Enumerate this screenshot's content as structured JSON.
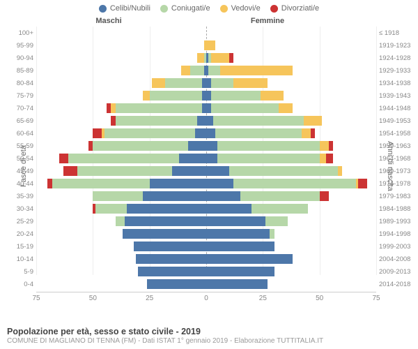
{
  "chart": {
    "type": "population-pyramid",
    "xmax": 75,
    "xtick_step": 25,
    "title": "Popolazione per età, sesso e stato civile - 2019",
    "subtitle": "COMUNE DI MAGLIANO DI TENNA (FM) - Dati ISTAT 1° gennaio 2019 - Elaborazione TUTTITALIA.IT",
    "y_left_label": "Fasce di età",
    "y_right_label": "Anni di nascita",
    "header_male": "Maschi",
    "header_female": "Femmine",
    "categories": [
      {
        "key": "celibi",
        "label": "Celibi/Nubili",
        "color": "#4d77a9"
      },
      {
        "key": "coniugati",
        "label": "Coniugati/e",
        "color": "#b6d7a8"
      },
      {
        "key": "vedovi",
        "label": "Vedovi/e",
        "color": "#f6c55b"
      },
      {
        "key": "divorziati",
        "label": "Divorziati/e",
        "color": "#cc3333"
      }
    ],
    "grid_color": "#eeeeee",
    "center_line_color": "#aaaaaa",
    "background_color": "#ffffff",
    "text_color": "#666666",
    "rows": [
      {
        "age": "100+",
        "birth": "≤ 1918",
        "m": {
          "cel": 0,
          "con": 0,
          "ved": 0,
          "div": 0
        },
        "f": {
          "cel": 0,
          "con": 0,
          "ved": 0,
          "div": 0
        }
      },
      {
        "age": "95-99",
        "birth": "1919-1923",
        "m": {
          "cel": 0,
          "con": 0,
          "ved": 1,
          "div": 0
        },
        "f": {
          "cel": 0,
          "con": 0,
          "ved": 4,
          "div": 0
        }
      },
      {
        "age": "90-94",
        "birth": "1924-1928",
        "m": {
          "cel": 0,
          "con": 1,
          "ved": 3,
          "div": 0
        },
        "f": {
          "cel": 1,
          "con": 1,
          "ved": 8,
          "div": 2
        }
      },
      {
        "age": "85-89",
        "birth": "1929-1933",
        "m": {
          "cel": 1,
          "con": 6,
          "ved": 4,
          "div": 0
        },
        "f": {
          "cel": 1,
          "con": 5,
          "ved": 32,
          "div": 0
        }
      },
      {
        "age": "80-84",
        "birth": "1934-1938",
        "m": {
          "cel": 2,
          "con": 16,
          "ved": 6,
          "div": 0
        },
        "f": {
          "cel": 2,
          "con": 10,
          "ved": 15,
          "div": 0
        }
      },
      {
        "age": "75-79",
        "birth": "1939-1943",
        "m": {
          "cel": 2,
          "con": 23,
          "ved": 3,
          "div": 0
        },
        "f": {
          "cel": 2,
          "con": 22,
          "ved": 10,
          "div": 0
        }
      },
      {
        "age": "70-74",
        "birth": "1944-1948",
        "m": {
          "cel": 2,
          "con": 38,
          "ved": 2,
          "div": 2
        },
        "f": {
          "cel": 2,
          "con": 30,
          "ved": 6,
          "div": 0
        }
      },
      {
        "age": "65-69",
        "birth": "1949-1953",
        "m": {
          "cel": 4,
          "con": 36,
          "ved": 0,
          "div": 2
        },
        "f": {
          "cel": 3,
          "con": 40,
          "ved": 8,
          "div": 0
        }
      },
      {
        "age": "60-64",
        "birth": "1954-1958",
        "m": {
          "cel": 5,
          "con": 40,
          "ved": 1,
          "div": 4
        },
        "f": {
          "cel": 4,
          "con": 38,
          "ved": 4,
          "div": 2
        }
      },
      {
        "age": "55-59",
        "birth": "1959-1963",
        "m": {
          "cel": 8,
          "con": 42,
          "ved": 0,
          "div": 2
        },
        "f": {
          "cel": 5,
          "con": 45,
          "ved": 4,
          "div": 2
        }
      },
      {
        "age": "50-54",
        "birth": "1964-1968",
        "m": {
          "cel": 12,
          "con": 49,
          "ved": 0,
          "div": 4
        },
        "f": {
          "cel": 5,
          "con": 45,
          "ved": 3,
          "div": 3
        }
      },
      {
        "age": "45-49",
        "birth": "1969-1973",
        "m": {
          "cel": 15,
          "con": 42,
          "ved": 0,
          "div": 6
        },
        "f": {
          "cel": 10,
          "con": 48,
          "ved": 2,
          "div": 0
        }
      },
      {
        "age": "40-44",
        "birth": "1974-1978",
        "m": {
          "cel": 25,
          "con": 43,
          "ved": 0,
          "div": 2
        },
        "f": {
          "cel": 12,
          "con": 54,
          "ved": 1,
          "div": 4
        }
      },
      {
        "age": "35-39",
        "birth": "1979-1983",
        "m": {
          "cel": 28,
          "con": 22,
          "ved": 0,
          "div": 0
        },
        "f": {
          "cel": 15,
          "con": 35,
          "ved": 0,
          "div": 4
        }
      },
      {
        "age": "30-34",
        "birth": "1984-1988",
        "m": {
          "cel": 35,
          "con": 14,
          "ved": 0,
          "div": 1
        },
        "f": {
          "cel": 20,
          "con": 25,
          "ved": 0,
          "div": 0
        }
      },
      {
        "age": "25-29",
        "birth": "1989-1993",
        "m": {
          "cel": 36,
          "con": 4,
          "ved": 0,
          "div": 0
        },
        "f": {
          "cel": 26,
          "con": 10,
          "ved": 0,
          "div": 0
        }
      },
      {
        "age": "20-24",
        "birth": "1994-1998",
        "m": {
          "cel": 37,
          "con": 0,
          "ved": 0,
          "div": 0
        },
        "f": {
          "cel": 28,
          "con": 2,
          "ved": 0,
          "div": 0
        }
      },
      {
        "age": "15-19",
        "birth": "1999-2003",
        "m": {
          "cel": 32,
          "con": 0,
          "ved": 0,
          "div": 0
        },
        "f": {
          "cel": 30,
          "con": 0,
          "ved": 0,
          "div": 0
        }
      },
      {
        "age": "10-14",
        "birth": "2004-2008",
        "m": {
          "cel": 31,
          "con": 0,
          "ved": 0,
          "div": 0
        },
        "f": {
          "cel": 38,
          "con": 0,
          "ved": 0,
          "div": 0
        }
      },
      {
        "age": "5-9",
        "birth": "2009-2013",
        "m": {
          "cel": 30,
          "con": 0,
          "ved": 0,
          "div": 0
        },
        "f": {
          "cel": 30,
          "con": 0,
          "ved": 0,
          "div": 0
        }
      },
      {
        "age": "0-4",
        "birth": "2014-2018",
        "m": {
          "cel": 26,
          "con": 0,
          "ved": 0,
          "div": 0
        },
        "f": {
          "cel": 27,
          "con": 0,
          "ved": 0,
          "div": 0
        }
      }
    ]
  }
}
